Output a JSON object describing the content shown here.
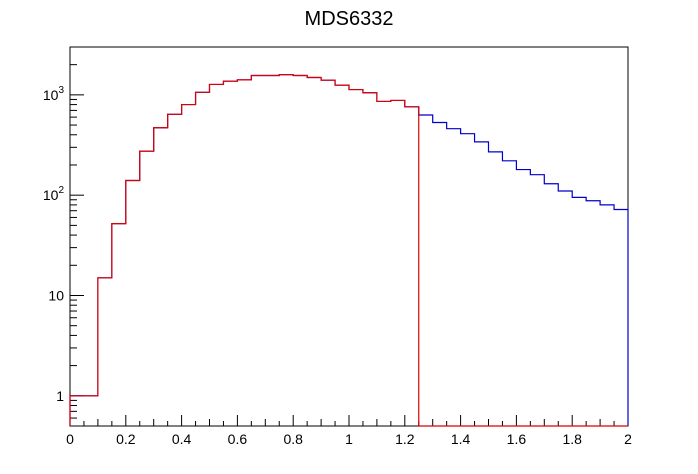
{
  "chart_data": {
    "type": "step-histogram",
    "title": "MDS6332",
    "xlabel": "",
    "ylabel": "",
    "xlim": [
      0,
      2
    ],
    "ylim": [
      0.5,
      3000
    ],
    "y_scale": "log",
    "grid": false,
    "legend": "none",
    "bin_width": 0.05,
    "x_tick_labels": [
      "0",
      "0.2",
      "0.4",
      "0.6",
      "0.8",
      "1",
      "1.2",
      "1.4",
      "1.6",
      "1.8",
      "2"
    ],
    "y_tick_labels": [
      {
        "value": 1,
        "base": "1",
        "exp": ""
      },
      {
        "value": 10,
        "base": "10",
        "exp": ""
      },
      {
        "value": 100,
        "base": "10",
        "exp": "2"
      },
      {
        "value": 1000,
        "base": "10",
        "exp": "3"
      }
    ],
    "series": [
      {
        "color": "#0000cc",
        "x_start": 0.0,
        "values": [
          1,
          1,
          15,
          52,
          140,
          275,
          470,
          640,
          800,
          1060,
          1270,
          1370,
          1410,
          1560,
          1560,
          1590,
          1560,
          1490,
          1400,
          1250,
          1130,
          1050,
          860,
          880,
          760,
          630,
          530,
          460,
          410,
          340,
          270,
          220,
          180,
          160,
          130,
          110,
          95,
          88,
          80,
          72
        ]
      },
      {
        "color": "#dd0000",
        "x_start": 0.0,
        "values": [
          1,
          1,
          15,
          52,
          140,
          275,
          470,
          640,
          800,
          1060,
          1270,
          1370,
          1410,
          1560,
          1560,
          1590,
          1560,
          1490,
          1400,
          1250,
          1130,
          1050,
          860,
          880,
          760
        ],
        "cut_x": 1.25
      }
    ]
  }
}
